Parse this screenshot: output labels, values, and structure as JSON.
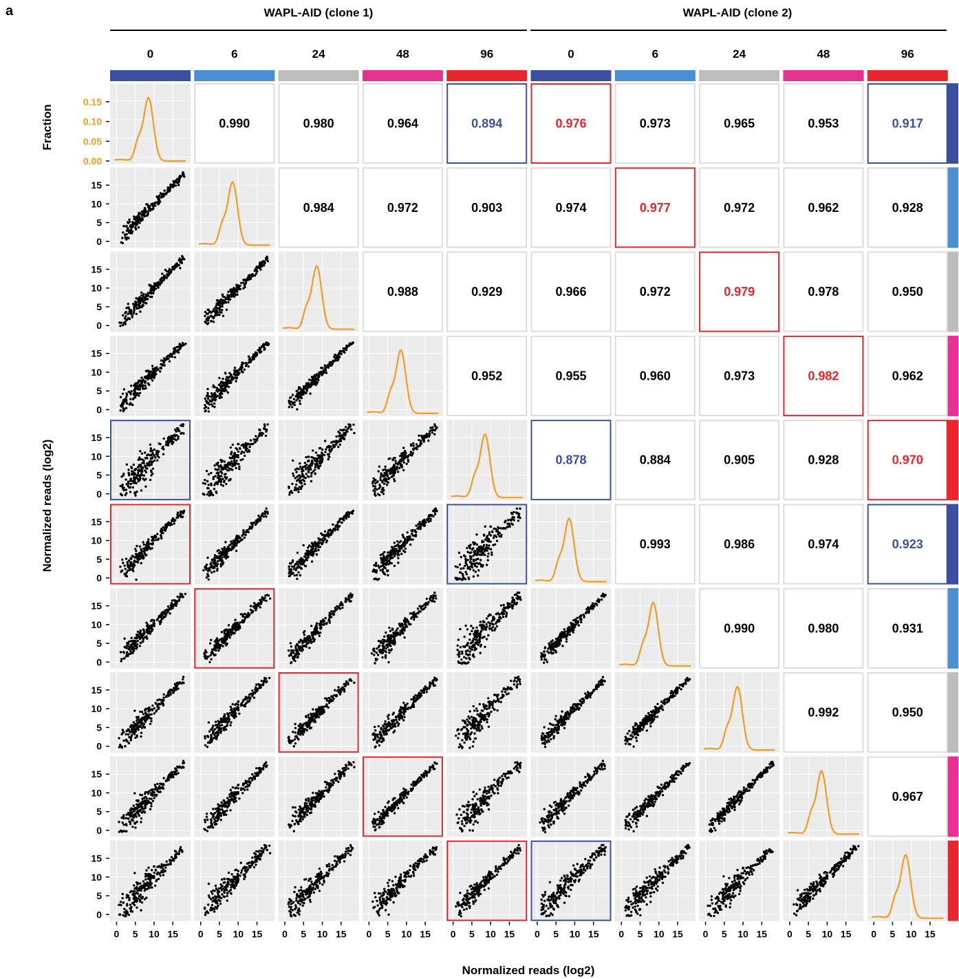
{
  "panel_label": "a",
  "groups": [
    {
      "label": "WAPL-AID (clone 1)"
    },
    {
      "label": "WAPL-AID (clone 2)"
    }
  ],
  "x_axis_title": "Normalized reads (log2)",
  "y_axis_title": "Normalized reads (log2)",
  "density_axis_title": "Fraction",
  "colors": {
    "0": "#3c4fa0",
    "6": "#4a8fd4",
    "24": "#bdbdbd",
    "48": "#e8318f",
    "96": "#e8262b",
    "highlight_red": "#e8262b",
    "highlight_blue": "#3c4fa0",
    "density_line": "#f39c1f",
    "panel_bg": "#ebebeb",
    "grid": "#ffffff",
    "text": "#000000"
  },
  "chart_data": {
    "type": "scatter-matrix",
    "samples": [
      {
        "group": "WAPL-AID (clone 1)",
        "time": "0",
        "color_key": "0"
      },
      {
        "group": "WAPL-AID (clone 1)",
        "time": "6",
        "color_key": "6"
      },
      {
        "group": "WAPL-AID (clone 1)",
        "time": "24",
        "color_key": "24"
      },
      {
        "group": "WAPL-AID (clone 1)",
        "time": "48",
        "color_key": "48"
      },
      {
        "group": "WAPL-AID (clone 1)",
        "time": "96",
        "color_key": "96"
      },
      {
        "group": "WAPL-AID (clone 2)",
        "time": "0",
        "color_key": "0"
      },
      {
        "group": "WAPL-AID (clone 2)",
        "time": "6",
        "color_key": "6"
      },
      {
        "group": "WAPL-AID (clone 2)",
        "time": "24",
        "color_key": "24"
      },
      {
        "group": "WAPL-AID (clone 2)",
        "time": "48",
        "color_key": "48"
      },
      {
        "group": "WAPL-AID (clone 2)",
        "time": "96",
        "color_key": "96"
      }
    ],
    "correlations": [
      {
        "row": 0,
        "col": 1,
        "value": "0.990"
      },
      {
        "row": 0,
        "col": 2,
        "value": "0.980"
      },
      {
        "row": 0,
        "col": 3,
        "value": "0.964"
      },
      {
        "row": 0,
        "col": 4,
        "value": "0.894",
        "highlight": "blue"
      },
      {
        "row": 0,
        "col": 5,
        "value": "0.976",
        "highlight": "red"
      },
      {
        "row": 0,
        "col": 6,
        "value": "0.973"
      },
      {
        "row": 0,
        "col": 7,
        "value": "0.965"
      },
      {
        "row": 0,
        "col": 8,
        "value": "0.953"
      },
      {
        "row": 0,
        "col": 9,
        "value": "0.917",
        "highlight": "blue"
      },
      {
        "row": 1,
        "col": 2,
        "value": "0.984"
      },
      {
        "row": 1,
        "col": 3,
        "value": "0.972"
      },
      {
        "row": 1,
        "col": 4,
        "value": "0.903"
      },
      {
        "row": 1,
        "col": 5,
        "value": "0.974"
      },
      {
        "row": 1,
        "col": 6,
        "value": "0.977",
        "highlight": "red"
      },
      {
        "row": 1,
        "col": 7,
        "value": "0.972"
      },
      {
        "row": 1,
        "col": 8,
        "value": "0.962"
      },
      {
        "row": 1,
        "col": 9,
        "value": "0.928"
      },
      {
        "row": 2,
        "col": 3,
        "value": "0.988"
      },
      {
        "row": 2,
        "col": 4,
        "value": "0.929"
      },
      {
        "row": 2,
        "col": 5,
        "value": "0.966"
      },
      {
        "row": 2,
        "col": 6,
        "value": "0.972"
      },
      {
        "row": 2,
        "col": 7,
        "value": "0.979",
        "highlight": "red"
      },
      {
        "row": 2,
        "col": 8,
        "value": "0.978"
      },
      {
        "row": 2,
        "col": 9,
        "value": "0.950"
      },
      {
        "row": 3,
        "col": 4,
        "value": "0.952"
      },
      {
        "row": 3,
        "col": 5,
        "value": "0.955"
      },
      {
        "row": 3,
        "col": 6,
        "value": "0.960"
      },
      {
        "row": 3,
        "col": 7,
        "value": "0.973"
      },
      {
        "row": 3,
        "col": 8,
        "value": "0.982",
        "highlight": "red"
      },
      {
        "row": 3,
        "col": 9,
        "value": "0.962"
      },
      {
        "row": 4,
        "col": 5,
        "value": "0.878",
        "highlight": "blue"
      },
      {
        "row": 4,
        "col": 6,
        "value": "0.884"
      },
      {
        "row": 4,
        "col": 7,
        "value": "0.905"
      },
      {
        "row": 4,
        "col": 8,
        "value": "0.928"
      },
      {
        "row": 4,
        "col": 9,
        "value": "0.970",
        "highlight": "red"
      },
      {
        "row": 5,
        "col": 6,
        "value": "0.993"
      },
      {
        "row": 5,
        "col": 7,
        "value": "0.986"
      },
      {
        "row": 5,
        "col": 8,
        "value": "0.974"
      },
      {
        "row": 5,
        "col": 9,
        "value": "0.923",
        "highlight": "blue"
      },
      {
        "row": 6,
        "col": 7,
        "value": "0.990"
      },
      {
        "row": 6,
        "col": 8,
        "value": "0.980"
      },
      {
        "row": 6,
        "col": 9,
        "value": "0.931"
      },
      {
        "row": 7,
        "col": 8,
        "value": "0.992"
      },
      {
        "row": 7,
        "col": 9,
        "value": "0.950"
      },
      {
        "row": 8,
        "col": 9,
        "value": "0.967"
      }
    ],
    "scatter_highlights": [
      {
        "row": 4,
        "col": 0,
        "highlight": "blue"
      },
      {
        "row": 5,
        "col": 0,
        "highlight": "red"
      },
      {
        "row": 5,
        "col": 4,
        "highlight": "blue"
      },
      {
        "row": 6,
        "col": 1,
        "highlight": "red"
      },
      {
        "row": 7,
        "col": 2,
        "highlight": "red"
      },
      {
        "row": 8,
        "col": 3,
        "highlight": "red"
      },
      {
        "row": 9,
        "col": 4,
        "highlight": "red"
      },
      {
        "row": 9,
        "col": 5,
        "highlight": "blue"
      }
    ],
    "scatter_spread": [
      [
        0,
        0,
        0,
        0,
        0,
        0,
        0,
        0,
        0,
        0
      ],
      [
        0.2,
        0,
        0,
        0,
        0,
        0,
        0,
        0,
        0,
        0
      ],
      [
        0.3,
        0.2,
        0,
        0,
        0,
        0,
        0,
        0,
        0,
        0
      ],
      [
        0.4,
        0.3,
        0.15,
        0,
        0,
        0,
        0,
        0,
        0,
        0
      ],
      [
        0.9,
        0.8,
        0.7,
        0.55,
        0,
        0,
        0,
        0,
        0,
        0
      ],
      [
        0.3,
        0.28,
        0.35,
        0.45,
        0.95,
        0,
        0,
        0,
        0,
        0
      ],
      [
        0.32,
        0.25,
        0.33,
        0.45,
        0.9,
        0.15,
        0,
        0,
        0,
        0
      ],
      [
        0.38,
        0.33,
        0.25,
        0.35,
        0.8,
        0.22,
        0.18,
        0,
        0,
        0
      ],
      [
        0.45,
        0.4,
        0.3,
        0.22,
        0.7,
        0.33,
        0.28,
        0.15,
        0,
        0
      ],
      [
        0.65,
        0.6,
        0.55,
        0.45,
        0.35,
        0.7,
        0.6,
        0.5,
        0.35,
        0
      ]
    ],
    "x_ticks": [
      "0",
      "5",
      "10",
      "15"
    ],
    "y_ticks_scatter": [
      "15",
      "10",
      "5",
      "0"
    ],
    "y_ticks_density": [
      "0.15",
      "0.10",
      "0.05",
      "0.00"
    ],
    "scatter_axis_range": [
      -1,
      19
    ],
    "density_axis_range": [
      0,
      0.19
    ],
    "density_peak_x": 8.5
  }
}
